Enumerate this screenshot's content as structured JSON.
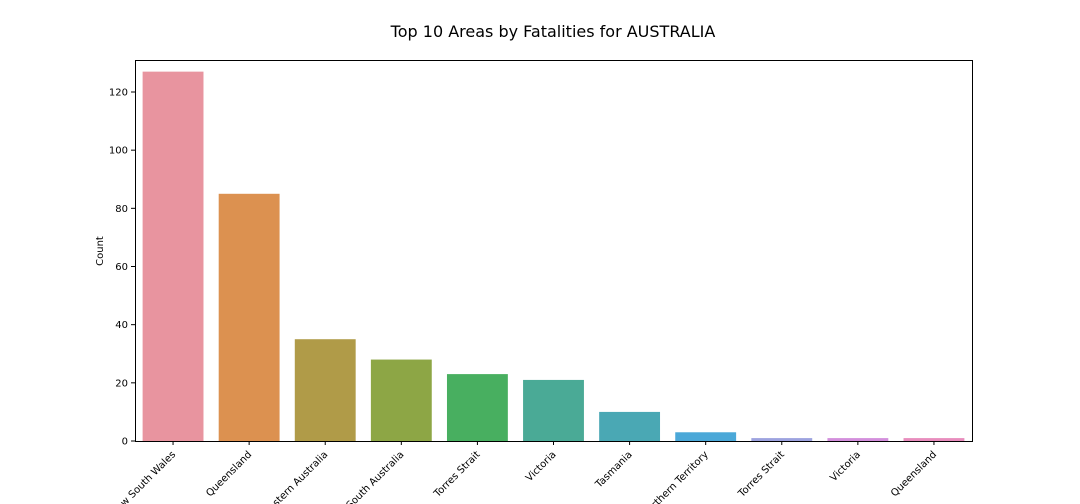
{
  "chart_data": {
    "type": "bar",
    "title": "Top 10 Areas by Fatalities for AUSTRALIA",
    "xlabel": "",
    "ylabel": "Count",
    "ylim": [
      0,
      131
    ],
    "yticks": [
      0,
      20,
      40,
      60,
      80,
      100,
      120
    ],
    "categories": [
      "New South Wales",
      "Queensland",
      "Western Australia",
      "South Australia",
      "Torres Strait",
      "Victoria",
      "Tasmania",
      "Northern Territory",
      "Torres Strait",
      "Victoria",
      "Queensland"
    ],
    "values": [
      127,
      85,
      35,
      28,
      23,
      21,
      10,
      3,
      1,
      1,
      1
    ],
    "colors": [
      "#e8949f",
      "#dc9150",
      "#b09b48",
      "#8da645",
      "#48af60",
      "#4aaa96",
      "#4aa8b4",
      "#4ba8d8",
      "#9da3df",
      "#d38fdc",
      "#e88dbd"
    ],
    "grid": false,
    "legend": "none"
  }
}
